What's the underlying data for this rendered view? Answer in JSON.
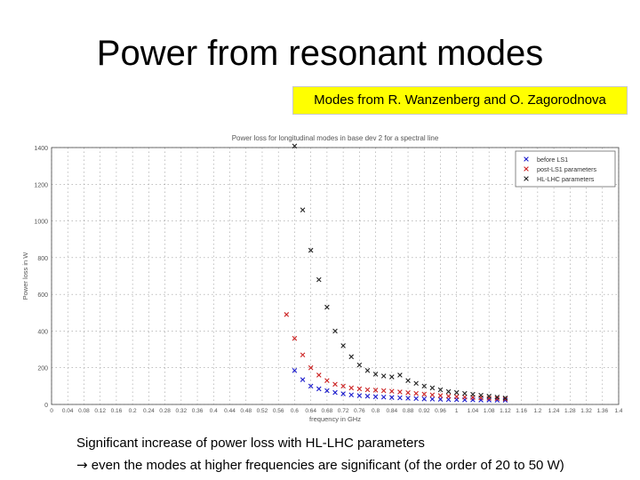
{
  "slide": {
    "title": "Power from resonant modes",
    "badge": "Modes from R. Wanzenberg and O. Zagorodnova",
    "note_line1": "Significant increase of power loss with HL-LHC parameters",
    "note_arrow": "→",
    "note_line2": "even the modes at higher frequencies are significant (of the order of 20 to 50 W)"
  },
  "chart_data": {
    "type": "scatter",
    "title": "Power loss for longitudinal modes in base dev 2 for a spectral line",
    "xlabel": "frequency in GHz",
    "ylabel": "Power loss in W",
    "xlim": [
      0,
      1.4
    ],
    "ylim": [
      0,
      1400
    ],
    "x_ticks": [
      "0",
      "0.04",
      "0.08",
      "0.12",
      "0.16",
      "0.2",
      "0.24",
      "0.28",
      "0.32",
      "0.36",
      "0.4",
      "0.44",
      "0.48",
      "0.52",
      "0.56",
      "0.6",
      "0.64",
      "0.68",
      "0.72",
      "0.76",
      "0.8",
      "0.84",
      "0.88",
      "0.92",
      "0.96",
      "1",
      "1.04",
      "1.08",
      "1.12",
      "1.16",
      "1.2",
      "1.24",
      "1.28",
      "1.32",
      "1.36",
      "1.4"
    ],
    "y_ticks": [
      "0",
      "200",
      "400",
      "600",
      "800",
      "1000",
      "1200",
      "1400"
    ],
    "grid": true,
    "legend_position": "top-right",
    "series": [
      {
        "name": "before LS1",
        "color": "#1a1acc",
        "x": [
          0.6,
          0.62,
          0.64,
          0.66,
          0.68,
          0.7,
          0.72,
          0.74,
          0.76,
          0.78,
          0.8,
          0.82,
          0.84,
          0.86,
          0.88,
          0.9,
          0.92,
          0.94,
          0.96,
          0.98,
          1.0,
          1.02,
          1.04,
          1.06,
          1.08,
          1.1,
          1.12
        ],
        "y": [
          185,
          135,
          100,
          85,
          75,
          65,
          58,
          52,
          48,
          45,
          42,
          40,
          38,
          36,
          34,
          32,
          30,
          29,
          28,
          27,
          26,
          25,
          25,
          24,
          24,
          23,
          23
        ]
      },
      {
        "name": "post-LS1 parameters",
        "color": "#cc2222",
        "x": [
          0.58,
          0.6,
          0.62,
          0.64,
          0.66,
          0.68,
          0.7,
          0.72,
          0.74,
          0.76,
          0.78,
          0.8,
          0.82,
          0.84,
          0.86,
          0.88,
          0.9,
          0.92,
          0.94,
          0.96,
          0.98,
          1.0,
          1.02,
          1.04,
          1.06,
          1.08,
          1.1,
          1.12
        ],
        "y": [
          490,
          360,
          270,
          200,
          160,
          130,
          110,
          100,
          90,
          85,
          80,
          78,
          75,
          72,
          68,
          64,
          60,
          56,
          52,
          48,
          45,
          42,
          40,
          38,
          36,
          34,
          32,
          30
        ]
      },
      {
        "name": "HL-LHC parameters",
        "color": "#222222",
        "x": [
          0.6,
          0.62,
          0.64,
          0.66,
          0.68,
          0.7,
          0.72,
          0.74,
          0.76,
          0.78,
          0.8,
          0.82,
          0.84,
          0.86,
          0.88,
          0.9,
          0.92,
          0.94,
          0.96,
          0.98,
          1.0,
          1.02,
          1.04,
          1.06,
          1.08,
          1.1,
          1.12
        ],
        "y": [
          1410,
          1060,
          840,
          680,
          530,
          400,
          320,
          260,
          215,
          185,
          165,
          155,
          150,
          160,
          130,
          115,
          100,
          90,
          80,
          70,
          65,
          60,
          55,
          50,
          45,
          40,
          35
        ]
      }
    ]
  }
}
